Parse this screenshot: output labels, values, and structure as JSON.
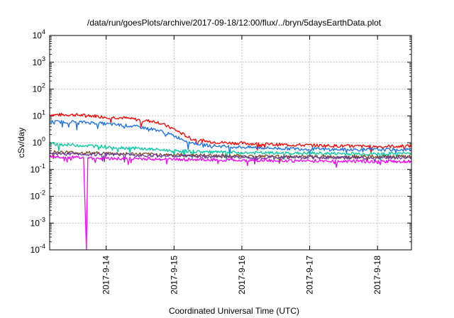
{
  "chart_data": {
    "type": "line",
    "title": "/data/run/goesPlots/archive/2017-09-18/12:00/flux/../bryn/5daysEarthData.plot",
    "xlabel": "Coordinated Universal Time (UTC)",
    "ylabel": "cSv/day",
    "yscale": "log",
    "ylim": [
      0.0001,
      10000
    ],
    "xlim": [
      "2017-09-13T04:00",
      "2017-09-18T12:00"
    ],
    "x_ticks": [
      "2017-9-14",
      "2017-9-15",
      "2017-9-16",
      "2017-9-17",
      "2017-9-18"
    ],
    "y_ticks": [
      {
        "base": "10",
        "exp": "4"
      },
      {
        "base": "10",
        "exp": "3"
      },
      {
        "base": "10",
        "exp": "2"
      },
      {
        "base": "10",
        "exp": "1"
      },
      {
        "base": "10",
        "exp": "0"
      },
      {
        "base": "10",
        "exp": "-1"
      },
      {
        "base": "10",
        "exp": "-2"
      },
      {
        "base": "10",
        "exp": "-3"
      },
      {
        "base": "10",
        "exp": "-4"
      }
    ],
    "grid": true,
    "legend": "none",
    "series": [
      {
        "color": "#ff0000",
        "x": [
          "2017-09-13T04:00",
          "2017-09-13T12:00",
          "2017-09-13T20:00",
          "2017-09-14T00:00",
          "2017-09-14T06:00",
          "2017-09-14T12:00",
          "2017-09-14T18:00",
          "2017-09-15T00:00",
          "2017-09-15T06:00",
          "2017-09-15T12:00",
          "2017-09-15T18:00",
          "2017-09-16T00:00",
          "2017-09-16T12:00",
          "2017-09-17T00:00",
          "2017-09-17T12:00",
          "2017-09-18T00:00",
          "2017-09-18T12:00"
        ],
        "y": [
          11,
          11,
          10,
          9,
          8.5,
          7,
          6,
          3.2,
          1.4,
          1.1,
          1.0,
          0.95,
          0.85,
          0.8,
          0.75,
          0.72,
          0.75
        ]
      },
      {
        "color": "#1a6ee6",
        "x": [
          "2017-09-13T04:00",
          "2017-09-13T12:00",
          "2017-09-13T20:00",
          "2017-09-14T00:00",
          "2017-09-14T06:00",
          "2017-09-14T12:00",
          "2017-09-14T18:00",
          "2017-09-15T00:00",
          "2017-09-15T06:00",
          "2017-09-15T12:00",
          "2017-09-15T18:00",
          "2017-09-16T00:00",
          "2017-09-16T12:00",
          "2017-09-17T00:00",
          "2017-09-17T12:00",
          "2017-09-18T00:00",
          "2017-09-18T12:00"
        ],
        "y": [
          6,
          6,
          5.5,
          5,
          4.5,
          3.8,
          3,
          1.8,
          1.0,
          0.8,
          0.72,
          0.68,
          0.62,
          0.58,
          0.55,
          0.55,
          0.55
        ]
      },
      {
        "color": "#00c8a0",
        "x": [
          "2017-09-13T04:00",
          "2017-09-13T20:00",
          "2017-09-14T12:00",
          "2017-09-15T00:00",
          "2017-09-15T12:00",
          "2017-09-16T00:00",
          "2017-09-17T00:00",
          "2017-09-18T00:00",
          "2017-09-18T12:00"
        ],
        "y": [
          0.9,
          0.75,
          0.6,
          0.5,
          0.45,
          0.42,
          0.4,
          0.38,
          0.4
        ]
      },
      {
        "color": "#7a4b1e",
        "x": [
          "2017-09-13T04:00",
          "2017-09-14T00:00",
          "2017-09-15T00:00",
          "2017-09-16T00:00",
          "2017-09-17T00:00",
          "2017-09-18T00:00",
          "2017-09-18T12:00"
        ],
        "y": [
          0.45,
          0.4,
          0.35,
          0.32,
          0.3,
          0.3,
          0.3
        ]
      },
      {
        "color": "#6a3d9a",
        "x": [
          "2017-09-13T04:00",
          "2017-09-14T00:00",
          "2017-09-15T00:00",
          "2017-09-16T00:00",
          "2017-09-17T00:00",
          "2017-09-18T00:00",
          "2017-09-18T12:00"
        ],
        "y": [
          0.4,
          0.36,
          0.32,
          0.29,
          0.28,
          0.27,
          0.28
        ]
      },
      {
        "color": "#ff00ff",
        "x": [
          "2017-09-13T04:00",
          "2017-09-13T16:00",
          "2017-09-13T17:00",
          "2017-09-13T17:30",
          "2017-09-14T00:00",
          "2017-09-15T00:00",
          "2017-09-16T00:00",
          "2017-09-17T00:00",
          "2017-09-18T00:00",
          "2017-09-18T12:00"
        ],
        "y": [
          0.3,
          0.28,
          0.0001,
          0.27,
          0.26,
          0.24,
          0.22,
          0.21,
          0.2,
          0.2
        ]
      }
    ]
  }
}
